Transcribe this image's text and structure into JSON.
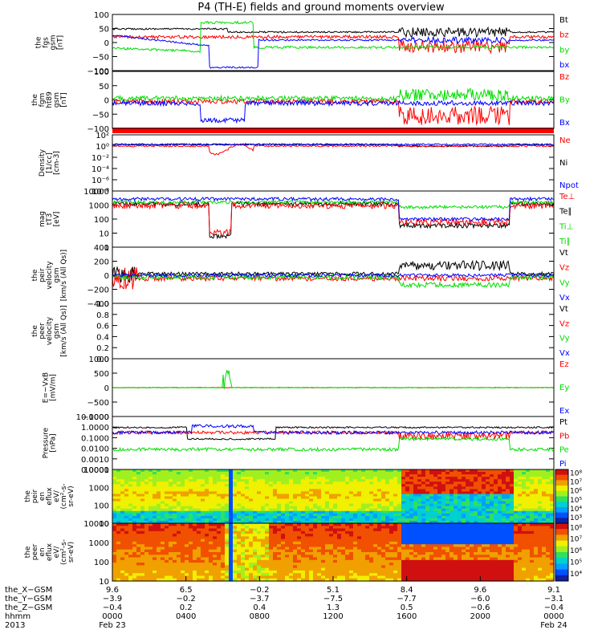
{
  "title": "P4 (TH-E) fields and ground moments overview",
  "colors": {
    "black": "#000000",
    "red": "#ff0000",
    "green": "#00dd00",
    "blue": "#0000ff",
    "spec_low": "#1a1aa0",
    "spec_high": "#d01010"
  },
  "chart_data": {
    "type": "line",
    "panels": [
      {
        "ylabel": [
          "the",
          "fgs",
          "gsm",
          "[nT]"
        ],
        "ticks": [
          "100",
          "50",
          "0",
          "−50",
          "−100"
        ],
        "legend": [
          {
            "text": "Bt",
            "color": "#000000"
          },
          {
            "text": "bz",
            "color": "#ff0000"
          },
          {
            "text": "by",
            "color": "#00dd00"
          },
          {
            "text": "bx",
            "color": "#0000ff"
          }
        ],
        "ylim": [
          -100,
          100
        ]
      },
      {
        "ylabel": [
          "the",
          "fgm",
          "ht89",
          "gsm",
          "[nT]"
        ],
        "ticks": [
          "100",
          "50",
          "0",
          "−50",
          "−100"
        ],
        "legend": [
          {
            "text": "Bz",
            "color": "#ff0000"
          },
          {
            "text": "By",
            "color": "#00dd00"
          },
          {
            "text": "Bx",
            "color": "#0000ff"
          }
        ],
        "ylim": [
          -120,
          100
        ]
      },
      {
        "ylabel": [
          "Density",
          "[1/cc]",
          "[cm-3]"
        ],
        "ticks": [
          "10²",
          "10⁰",
          "10⁻²",
          "10⁻⁴",
          "10⁻⁶",
          "10⁻⁸"
        ],
        "legend": [
          {
            "text": "Ne",
            "color": "#ff0000"
          },
          {
            "text": "Ni",
            "color": "#000000"
          },
          {
            "text": "Npot",
            "color": "#0000ff"
          }
        ],
        "ylim": [
          -9,
          2.5
        ],
        "log": true
      },
      {
        "ylabel": [
          "mag",
          "tT3",
          "[eV]"
        ],
        "ticks": [
          "10000",
          "1000",
          "100",
          "10",
          "1"
        ],
        "legend": [
          {
            "text": "Te⊥",
            "color": "#ff0000"
          },
          {
            "text": "Te∥",
            "color": "#000000"
          },
          {
            "text": "Ti⊥",
            "color": "#00dd00"
          },
          {
            "text": "Ti∥",
            "color": "#00dd00"
          }
        ],
        "ylim": [
          0,
          4
        ],
        "log": true
      },
      {
        "ylabel": [
          "the",
          "peir",
          "velocity",
          "gsm",
          "[km/s (All Qs)]"
        ],
        "ticks": [
          "400",
          "200",
          "0",
          "−200",
          "−400"
        ],
        "legend": [
          {
            "text": "Vt",
            "color": "#000000"
          },
          {
            "text": "Vz",
            "color": "#ff0000"
          },
          {
            "text": "Vy",
            "color": "#00dd00"
          },
          {
            "text": "Vx",
            "color": "#0000ff"
          }
        ],
        "ylim": [
          -400,
          400
        ]
      },
      {
        "ylabel": [
          "the",
          "peer",
          "velocity",
          "gsm",
          "[km/s (All Qs)]"
        ],
        "ticks": [
          "1.0",
          "0.8",
          "0.6",
          "0.4",
          "0.2",
          "0.0"
        ],
        "legend": [
          {
            "text": "Vt",
            "color": "#000000"
          },
          {
            "text": "Vz",
            "color": "#ff0000"
          },
          {
            "text": "Vy",
            "color": "#00dd00"
          },
          {
            "text": "Vx",
            "color": "#0000ff"
          }
        ],
        "ylim": [
          0,
          1
        ]
      },
      {
        "ylabel": [
          "E=−VxB",
          "[mV/m]"
        ],
        "ticks": [
          "1000",
          "500",
          "0",
          "−500",
          "−1000"
        ],
        "legend": [
          {
            "text": "Ez",
            "color": "#ff0000"
          },
          {
            "text": "Ey",
            "color": "#00dd00"
          },
          {
            "text": "Ex",
            "color": "#0000ff"
          }
        ],
        "ylim": [
          -1000,
          1000
        ]
      },
      {
        "ylabel": [
          "Pressure",
          "[nPa]"
        ],
        "ticks": [
          "10.0000",
          "1.0000",
          "0.1000",
          "0.0100",
          "0.0010",
          "0.0001"
        ],
        "legend": [
          {
            "text": "Pt",
            "color": "#000000"
          },
          {
            "text": "Pb",
            "color": "#ff0000"
          },
          {
            "text": "Pe",
            "color": "#00dd00"
          },
          {
            "text": "Pi",
            "color": "#0000ff"
          }
        ],
        "ylim": [
          -4,
          1.3
        ],
        "log": true
      },
      {
        "ylabel": [
          "the",
          "peir",
          "en",
          "eflux",
          "eV/",
          "(cm²-s-",
          "sr-eV)"
        ],
        "ticks": [
          "10000",
          "1000",
          "100",
          "10"
        ],
        "colorbar": [
          "10⁸",
          "10⁷",
          "10⁶",
          "10⁵",
          "10⁴",
          "10³"
        ],
        "type": "heatmap"
      },
      {
        "ylabel": [
          "the",
          "peer",
          "en",
          "eflux",
          "eV/",
          "(cm²-s-",
          "sr-eV)"
        ],
        "ticks": [
          "10000",
          "1000",
          "100",
          "10"
        ],
        "colorbar": [
          "10⁸",
          "10⁷",
          "10⁶",
          "10⁵",
          "10⁴"
        ],
        "type": "heatmap"
      }
    ],
    "xaxis": {
      "row_labels": [
        "the_X−GSM",
        "the_Y−GSM",
        "the_Z−GSM",
        "hhmm",
        "2013"
      ],
      "ticks": [
        {
          "vals": [
            "9.6",
            "−3.9",
            "−0.4",
            "0000",
            "Feb 23"
          ]
        },
        {
          "vals": [
            "6.5",
            "−0.2",
            "0.2",
            "0400",
            ""
          ]
        },
        {
          "vals": [
            "−0.2",
            "−3.7",
            "0.4",
            "0800",
            ""
          ]
        },
        {
          "vals": [
            "5.1",
            "−7.5",
            "1.3",
            "1200",
            ""
          ]
        },
        {
          "vals": [
            "8.4",
            "−7.7",
            "0.5",
            "1600",
            ""
          ]
        },
        {
          "vals": [
            "9.6",
            "−6.0",
            "−0.6",
            "2000",
            ""
          ]
        },
        {
          "vals": [
            "9.1",
            "−3.1",
            "−0.4",
            "0000",
            "Feb 24"
          ]
        }
      ]
    }
  }
}
